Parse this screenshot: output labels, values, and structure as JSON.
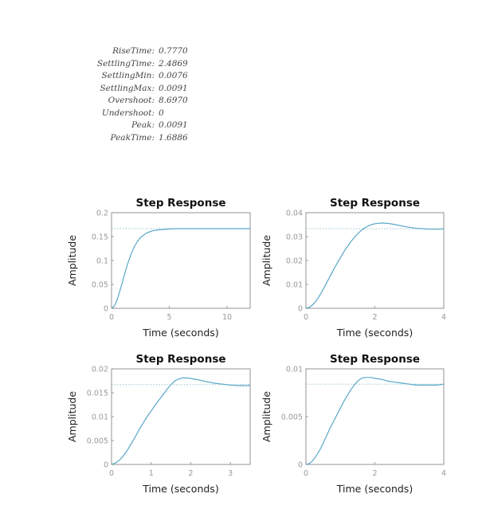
{
  "stepinfo": [
    {
      "key": "RiseTime:",
      "value": "0.7770"
    },
    {
      "key": "SettlingTime:",
      "value": "2.4869"
    },
    {
      "key": "SettlingMin:",
      "value": "0.0076"
    },
    {
      "key": "SettlingMax:",
      "value": "0.0091"
    },
    {
      "key": "Overshoot:",
      "value": "8.6970"
    },
    {
      "key": "Undershoot:",
      "value": "0"
    },
    {
      "key": "Peak:",
      "value": "0.0091"
    },
    {
      "key": "PeakTime:",
      "value": "1.6886"
    }
  ],
  "colors": {
    "curve": "#5aa8c8",
    "steady": "#8fb9cc",
    "axis": "#888888",
    "tick_label": "#999999",
    "title": "#111111",
    "label": "#222222"
  },
  "chart_data": [
    {
      "type": "line",
      "title": "Step Response",
      "xlabel": "Time (seconds)",
      "ylabel": "Amplitude",
      "xlim": [
        0,
        12
      ],
      "ylim": [
        0,
        0.2
      ],
      "xticks": [
        0,
        5,
        10
      ],
      "xticklabels": [
        "0",
        "5",
        "10"
      ],
      "yticks": [
        0,
        0.05,
        0.1,
        0.15,
        0.2
      ],
      "yticklabels": [
        "0",
        "0.05",
        "0.1",
        "0.15",
        "0.2"
      ],
      "steady_state": 0.1667,
      "grid": false,
      "x": [
        0,
        0.25,
        0.5,
        0.75,
        1,
        1.25,
        1.5,
        1.75,
        2,
        2.25,
        2.5,
        3,
        3.5,
        4,
        5,
        6,
        8,
        10,
        12
      ],
      "y": [
        0,
        0.005,
        0.019,
        0.039,
        0.06,
        0.082,
        0.101,
        0.117,
        0.13,
        0.14,
        0.148,
        0.157,
        0.162,
        0.164,
        0.166,
        0.1667,
        0.1667,
        0.1667,
        0.1667
      ]
    },
    {
      "type": "line",
      "title": "Step Response",
      "xlabel": "Time (seconds)",
      "ylabel": "Amplitude",
      "xlim": [
        0,
        4
      ],
      "ylim": [
        0,
        0.04
      ],
      "xticks": [
        0,
        2,
        4
      ],
      "xticklabels": [
        "0",
        "2",
        "4"
      ],
      "yticks": [
        0,
        0.01,
        0.02,
        0.03,
        0.04
      ],
      "yticklabels": [
        "0",
        "0.01",
        "0.02",
        "0.03",
        "0.04"
      ],
      "steady_state": 0.0333,
      "grid": false,
      "x": [
        0,
        0.1,
        0.2,
        0.3,
        0.4,
        0.5,
        0.6,
        0.7,
        0.8,
        0.9,
        1,
        1.1,
        1.2,
        1.3,
        1.4,
        1.5,
        1.6,
        1.7,
        1.8,
        1.9,
        2,
        2.2,
        2.4,
        2.6,
        2.8,
        3,
        3.2,
        3.4,
        3.6,
        3.8,
        4
      ],
      "y": [
        0,
        0.0004,
        0.0015,
        0.0032,
        0.0054,
        0.0079,
        0.0106,
        0.0134,
        0.0161,
        0.0187,
        0.0212,
        0.0236,
        0.0258,
        0.0278,
        0.0296,
        0.0312,
        0.0325,
        0.0336,
        0.0344,
        0.035,
        0.0354,
        0.0357,
        0.0355,
        0.035,
        0.0344,
        0.0339,
        0.0335,
        0.0333,
        0.0331,
        0.0331,
        0.0332
      ]
    },
    {
      "type": "line",
      "title": "Step Response",
      "xlabel": "Time (seconds)",
      "ylabel": "Amplitude",
      "xlim": [
        0,
        3.5
      ],
      "ylim": [
        0,
        0.02
      ],
      "xticks": [
        0,
        1,
        2,
        3
      ],
      "xticklabels": [
        "0",
        "1",
        "2",
        "3"
      ],
      "yticks": [
        0,
        0.005,
        0.01,
        0.015,
        0.02
      ],
      "yticklabels": [
        "0",
        "0.005",
        "0.01",
        "0.015",
        "0.02"
      ],
      "steady_state": 0.0167,
      "grid": false,
      "x": [
        0,
        0.1,
        0.2,
        0.3,
        0.4,
        0.5,
        0.6,
        0.7,
        0.8,
        0.9,
        1,
        1.1,
        1.2,
        1.3,
        1.4,
        1.5,
        1.6,
        1.7,
        1.8,
        1.9,
        2,
        2.2,
        2.4,
        2.6,
        2.8,
        3,
        3.2,
        3.5
      ],
      "y": [
        0,
        0.0003,
        0.0009,
        0.0018,
        0.003,
        0.0044,
        0.0058,
        0.0073,
        0.0087,
        0.01,
        0.0112,
        0.0124,
        0.0135,
        0.0146,
        0.0157,
        0.0167,
        0.0175,
        0.0179,
        0.0181,
        0.0181,
        0.018,
        0.0177,
        0.0173,
        0.017,
        0.0168,
        0.0166,
        0.0165,
        0.0165
      ]
    },
    {
      "type": "line",
      "title": "Step Response",
      "xlabel": "Time (seconds)",
      "ylabel": "Amplitude",
      "xlim": [
        0,
        4
      ],
      "ylim": [
        0,
        0.01
      ],
      "xticks": [
        0,
        2,
        4
      ],
      "xticklabels": [
        "0",
        "2",
        "4"
      ],
      "yticks": [
        0,
        0.005,
        0.01
      ],
      "yticklabels": [
        "0",
        "0.005",
        "0.01"
      ],
      "steady_state": 0.0084,
      "grid": false,
      "x": [
        0,
        0.1,
        0.2,
        0.3,
        0.4,
        0.5,
        0.6,
        0.7,
        0.8,
        0.9,
        1,
        1.1,
        1.2,
        1.3,
        1.4,
        1.5,
        1.6,
        1.7,
        1.8,
        1.9,
        2,
        2.2,
        2.4,
        2.6,
        2.8,
        3,
        3.2,
        3.4,
        3.6,
        3.8,
        4
      ],
      "y": [
        0,
        0.0001,
        0.0004,
        0.0009,
        0.0015,
        0.0022,
        0.003,
        0.0038,
        0.0045,
        0.0052,
        0.0059,
        0.0066,
        0.0072,
        0.0078,
        0.0083,
        0.0087,
        0.009,
        0.0091,
        0.0091,
        0.0091,
        0.009,
        0.0089,
        0.0087,
        0.0086,
        0.0085,
        0.0084,
        0.0083,
        0.0083,
        0.0083,
        0.0083,
        0.0084
      ]
    }
  ]
}
